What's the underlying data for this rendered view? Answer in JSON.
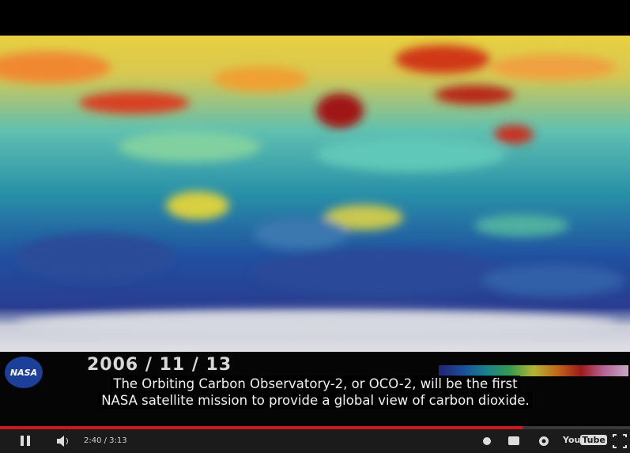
{
  "video": {
    "date": "2006 / 11 / 13",
    "logo": "NASA",
    "caption": [
      "The Orbiting Carbon Observatory-2, or OCO-2, will be the first",
      "NASA satellite mission to provide a global view of carbon dioxide."
    ]
  },
  "controls": {
    "time": "2:40 / 3:13",
    "brand": "You",
    "brand_box": "Tube"
  }
}
